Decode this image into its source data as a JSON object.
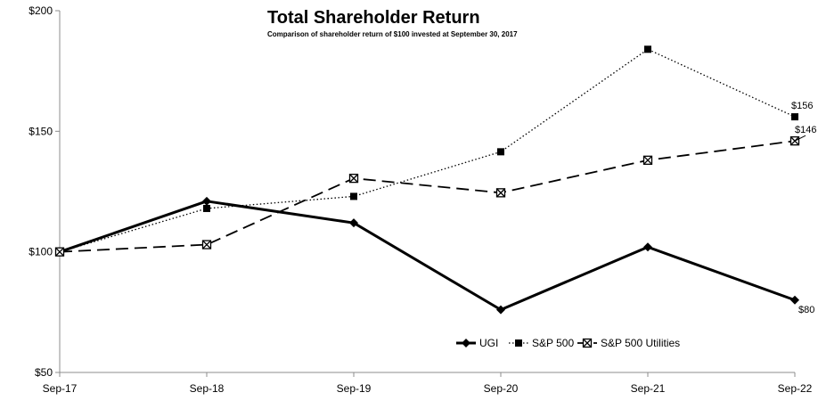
{
  "chart_data": {
    "type": "line",
    "title": "Total Shareholder Return",
    "subtitle": "Comparison of shareholder return of $100 invested at September 30, 2017",
    "categories": [
      "Sep-17",
      "Sep-18",
      "Sep-19",
      "Sep-20",
      "Sep-21",
      "Sep-22"
    ],
    "ylim": [
      50,
      200
    ],
    "yticks": [
      50,
      100,
      150,
      200
    ],
    "ytick_labels": [
      "$50",
      "$100",
      "$150",
      "$200"
    ],
    "series": [
      {
        "name": "UGI",
        "values": [
          100,
          121,
          112,
          76,
          102,
          80
        ],
        "style": "solid",
        "marker": "diamond",
        "end_label": "$80"
      },
      {
        "name": "S&P 500",
        "values": [
          100,
          118,
          123,
          141.5,
          184,
          156
        ],
        "style": "dotted",
        "marker": "square",
        "end_label": "$156"
      },
      {
        "name": "S&P 500 Utilities",
        "values": [
          100,
          103,
          130.5,
          124.5,
          138,
          146
        ],
        "style": "dashed",
        "marker": "x-square",
        "end_label": "$146"
      }
    ],
    "legend_position": "bottom-right"
  }
}
